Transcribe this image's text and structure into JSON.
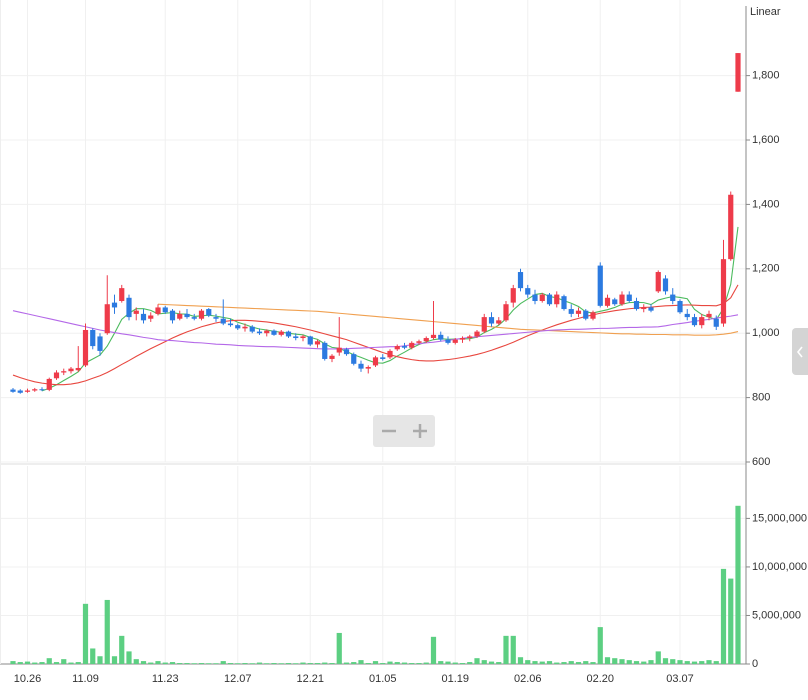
{
  "chart_data": {
    "type": "candlestick",
    "scale_label": "Linear",
    "up_color": "#ee3b4a",
    "down_color": "#2c7ae0",
    "grid": true,
    "categories": [
      null,
      null,
      "10.26",
      null,
      null,
      null,
      null,
      null,
      null,
      null,
      "11.09",
      null,
      null,
      null,
      null,
      null,
      null,
      null,
      null,
      null,
      null,
      "11.23",
      null,
      null,
      null,
      null,
      null,
      null,
      null,
      null,
      null,
      "12.07",
      null,
      null,
      null,
      null,
      null,
      null,
      null,
      null,
      null,
      "12.21",
      null,
      null,
      null,
      null,
      null,
      null,
      null,
      null,
      null,
      "01.05",
      null,
      null,
      null,
      null,
      null,
      null,
      null,
      null,
      null,
      "01.19",
      null,
      null,
      null,
      null,
      null,
      null,
      null,
      null,
      null,
      "02.06",
      null,
      null,
      null,
      null,
      null,
      null,
      null,
      null,
      null,
      "02.20",
      null,
      null,
      null,
      null,
      null,
      null,
      null,
      null,
      null,
      null,
      "03.07",
      null,
      null,
      null,
      null,
      null,
      null,
      null,
      null
    ],
    "candles": [
      [
        825,
        830,
        815,
        818
      ],
      [
        822,
        826,
        812,
        815
      ],
      [
        818,
        828,
        815,
        822
      ],
      [
        822,
        830,
        818,
        826
      ],
      [
        826,
        832,
        820,
        824
      ],
      [
        824,
        862,
        820,
        858
      ],
      [
        860,
        885,
        855,
        878
      ],
      [
        878,
        890,
        870,
        882
      ],
      [
        882,
        895,
        875,
        890
      ],
      [
        885,
        960,
        880,
        892
      ],
      [
        900,
        1030,
        895,
        1010
      ],
      [
        1010,
        1015,
        950,
        960
      ],
      [
        990,
        1000,
        930,
        945
      ],
      [
        1000,
        1180,
        995,
        1090
      ],
      [
        1095,
        1120,
        1060,
        1080
      ],
      [
        1100,
        1150,
        1095,
        1140
      ],
      [
        1110,
        1120,
        1040,
        1050
      ],
      [
        1060,
        1080,
        1040,
        1070
      ],
      [
        1060,
        1075,
        1030,
        1040
      ],
      [
        1045,
        1065,
        1035,
        1055
      ],
      [
        1060,
        1090,
        1055,
        1080
      ],
      [
        1080,
        1085,
        1060,
        1065
      ],
      [
        1070,
        1075,
        1030,
        1040
      ],
      [
        1045,
        1070,
        1040,
        1060
      ],
      [
        1060,
        1075,
        1045,
        1050
      ],
      [
        1050,
        1060,
        1040,
        1045
      ],
      [
        1045,
        1075,
        1040,
        1070
      ],
      [
        1075,
        1078,
        1050,
        1055
      ],
      [
        1050,
        1060,
        1035,
        1045
      ],
      [
        1045,
        1105,
        1025,
        1030
      ],
      [
        1030,
        1045,
        1020,
        1025
      ],
      [
        1025,
        1030,
        1010,
        1015
      ],
      [
        1015,
        1030,
        1005,
        1020
      ],
      [
        1020,
        1025,
        1000,
        1005
      ],
      [
        1005,
        1015,
        995,
        1000
      ],
      [
        1000,
        1012,
        990,
        1008
      ],
      [
        1008,
        1012,
        992,
        995
      ],
      [
        995,
        1010,
        990,
        1005
      ],
      [
        1005,
        1008,
        985,
        990
      ],
      [
        990,
        1000,
        978,
        985
      ],
      [
        985,
        995,
        975,
        990
      ],
      [
        990,
        992,
        960,
        965
      ],
      [
        965,
        980,
        955,
        975
      ],
      [
        970,
        975,
        915,
        920
      ],
      [
        920,
        935,
        910,
        930
      ],
      [
        940,
        1050,
        930,
        955
      ],
      [
        950,
        955,
        930,
        935
      ],
      [
        935,
        940,
        900,
        905
      ],
      [
        905,
        915,
        880,
        890
      ],
      [
        890,
        900,
        875,
        895
      ],
      [
        900,
        930,
        895,
        925
      ],
      [
        925,
        935,
        915,
        920
      ],
      [
        925,
        950,
        920,
        945
      ],
      [
        950,
        965,
        945,
        960
      ],
      [
        960,
        970,
        950,
        955
      ],
      [
        955,
        975,
        950,
        970
      ],
      [
        970,
        980,
        965,
        975
      ],
      [
        975,
        990,
        970,
        985
      ],
      [
        985,
        1100,
        980,
        995
      ],
      [
        995,
        1005,
        975,
        980
      ],
      [
        980,
        990,
        965,
        970
      ],
      [
        970,
        985,
        965,
        980
      ],
      [
        980,
        990,
        970,
        985
      ],
      [
        985,
        995,
        975,
        990
      ],
      [
        990,
        1010,
        985,
        1005
      ],
      [
        1005,
        1060,
        1000,
        1050
      ],
      [
        1050,
        1065,
        1020,
        1030
      ],
      [
        1030,
        1050,
        1025,
        1040
      ],
      [
        1040,
        1100,
        1035,
        1090
      ],
      [
        1095,
        1150,
        1080,
        1140
      ],
      [
        1190,
        1200,
        1130,
        1140
      ],
      [
        1140,
        1150,
        1110,
        1120
      ],
      [
        1120,
        1135,
        1090,
        1100
      ],
      [
        1100,
        1125,
        1095,
        1120
      ],
      [
        1120,
        1125,
        1085,
        1090
      ],
      [
        1090,
        1130,
        1080,
        1120
      ],
      [
        1115,
        1120,
        1070,
        1075
      ],
      [
        1075,
        1090,
        1050,
        1060
      ],
      [
        1060,
        1080,
        1050,
        1070
      ],
      [
        1070,
        1075,
        1040,
        1045
      ],
      [
        1045,
        1070,
        1040,
        1065
      ],
      [
        1210,
        1220,
        1080,
        1085
      ],
      [
        1085,
        1120,
        1080,
        1110
      ],
      [
        1105,
        1110,
        1085,
        1090
      ],
      [
        1090,
        1130,
        1085,
        1120
      ],
      [
        1120,
        1130,
        1095,
        1100
      ],
      [
        1100,
        1110,
        1070,
        1075
      ],
      [
        1075,
        1090,
        1065,
        1080
      ],
      [
        1080,
        1090,
        1065,
        1070
      ],
      [
        1130,
        1195,
        1125,
        1190
      ],
      [
        1170,
        1180,
        1120,
        1130
      ],
      [
        1120,
        1140,
        1090,
        1100
      ],
      [
        1100,
        1105,
        1060,
        1065
      ],
      [
        1060,
        1075,
        1040,
        1050
      ],
      [
        1050,
        1060,
        1020,
        1025
      ],
      [
        1025,
        1060,
        1015,
        1050
      ],
      [
        1050,
        1070,
        1040,
        1060
      ],
      [
        1045,
        1055,
        1010,
        1020
      ],
      [
        1030,
        1290,
        1020,
        1230
      ],
      [
        1230,
        1440,
        1225,
        1430
      ],
      [
        1750,
        1870,
        1750,
        1870
      ]
    ],
    "ylim": [
      600,
      2010
    ],
    "yticks": [
      600,
      800,
      {
        "value": 1000,
        "label": "1,000"
      },
      {
        "value": 1200,
        "label": "1,200"
      },
      {
        "value": 1400,
        "label": "1,400"
      },
      {
        "value": 1600,
        "label": "1,600"
      },
      {
        "value": 1800,
        "label": "1,800"
      }
    ],
    "ma_lines": [
      {
        "color": "#4cbb5e",
        "values": [
          null,
          null,
          null,
          null,
          821,
          829,
          840,
          853,
          866,
          880,
          908,
          920,
          932,
          960,
          1000,
          1043,
          1062,
          1076,
          1076,
          1071,
          1060,
          1062,
          1064,
          1060,
          1059,
          1052,
          1054,
          1056,
          1053,
          1049,
          1045,
          1034,
          1027,
          1019,
          1013,
          1010,
          1006,
          1003,
          1000,
          997,
          995,
          987,
          981,
          967,
          956,
          953,
          943,
          933,
          925,
          916,
          908,
          907,
          915,
          929,
          941,
          954,
          965,
          973,
          980,
          983,
          981,
          982,
          982,
          983,
          988,
          1002,
          1012,
          1025,
          1045,
          1072,
          1092,
          1106,
          1120,
          1124,
          1114,
          1110,
          1101,
          1093,
          1083,
          1066,
          1063,
          1068,
          1073,
          1080,
          1090,
          1095,
          1096,
          1095,
          1089,
          1103,
          1109,
          1114,
          1111,
          1107,
          1074,
          1058,
          1050,
          1042,
          1077,
          1152,
          1330
        ]
      },
      {
        "color": "#e8473f",
        "values": [
          870,
          862,
          855,
          849,
          845,
          842,
          840,
          840,
          842,
          846,
          852,
          860,
          868,
          878,
          890,
          903,
          915,
          928,
          940,
          952,
          963,
          974,
          985,
          995,
          1004,
          1012,
          1020,
          1026,
          1032,
          1036,
          1039,
          1040,
          1040,
          1039,
          1037,
          1035,
          1032,
          1028,
          1024,
          1020,
          1015,
          1010,
          1004,
          998,
          992,
          986,
          980,
          972,
          964,
          956,
          948,
          940,
          933,
          927,
          922,
          918,
          915,
          914,
          914,
          916,
          918,
          921,
          925,
          929,
          934,
          940,
          947,
          955,
          963,
          972,
          982,
          992,
          1001,
          1010,
          1018,
          1026,
          1033,
          1040,
          1046,
          1052,
          1057,
          1062,
          1066,
          1070,
          1073,
          1076,
          1078,
          1080,
          1081,
          1083,
          1085,
          1086,
          1087,
          1088,
          1087,
          1086,
          1086,
          1085,
          1092,
          1110,
          1150
        ]
      },
      {
        "color": "#f0a050",
        "values": [
          null,
          null,
          null,
          null,
          null,
          null,
          null,
          null,
          null,
          null,
          null,
          null,
          null,
          null,
          null,
          null,
          null,
          null,
          null,
          null,
          1090,
          1089,
          1088,
          1087,
          1086,
          1085,
          1084,
          1083,
          1082,
          1081,
          1080,
          1079,
          1078,
          1077,
          1076,
          1075,
          1074,
          1073,
          1072,
          1071,
          1070,
          1069,
          1068,
          1066,
          1064,
          1062,
          1060,
          1058,
          1056,
          1054,
          1052,
          1050,
          1048,
          1046,
          1044,
          1042,
          1040,
          1038,
          1036,
          1034,
          1032,
          1030,
          1028,
          1026,
          1024,
          1022,
          1020,
          1018,
          1016,
          1014,
          1012,
          1011,
          1010,
          1009,
          1008,
          1007,
          1006,
          1005,
          1004,
          1003,
          1002,
          1001,
          1000,
          999,
          998,
          998,
          997,
          997,
          996,
          996,
          996,
          995,
          995,
          995,
          994,
          994,
          994,
          995,
          997,
          1000,
          1005
        ]
      },
      {
        "color": "#b468e8",
        "values": [
          1070,
          1065,
          1060,
          1055,
          1050,
          1045,
          1040,
          1035,
          1030,
          1025,
          1020,
          1015,
          1010,
          1006,
          1002,
          998,
          995,
          991,
          987,
          984,
          980,
          978,
          977,
          975,
          973,
          971,
          970,
          968,
          966,
          965,
          964,
          962,
          961,
          960,
          959,
          958,
          958,
          957,
          956,
          955,
          954,
          953,
          952,
          951,
          951,
          951,
          952,
          953,
          954,
          955,
          956,
          957,
          958,
          958,
          961,
          964,
          967,
          970,
          972,
          975,
          978,
          981,
          984,
          987,
          989,
          991,
          993,
          995,
          997,
          999,
          1001,
          1003,
          1005,
          1007,
          1009,
          1010,
          1011,
          1012,
          1012,
          1013,
          1014,
          1015,
          1015,
          1016,
          1017,
          1018,
          1018,
          1019,
          1019,
          1020,
          1023,
          1027,
          1030,
          1033,
          1037,
          1040,
          1043,
          1047,
          1050,
          1053,
          1057
        ]
      }
    ],
    "volume": {
      "color": "#5ccf82",
      "values": [
        300000,
        200000,
        250000,
        150000,
        200000,
        600000,
        200000,
        500000,
        150000,
        200000,
        6200000,
        1600000,
        800000,
        6600000,
        800000,
        2900000,
        1300000,
        500000,
        300000,
        150000,
        300000,
        150000,
        200000,
        100000,
        100000,
        80000,
        100000,
        80000,
        80000,
        300000,
        100000,
        80000,
        100000,
        80000,
        150000,
        80000,
        100000,
        80000,
        100000,
        80000,
        150000,
        100000,
        100000,
        150000,
        100000,
        3200000,
        150000,
        200000,
        400000,
        100000,
        300000,
        100000,
        250000,
        200000,
        150000,
        100000,
        100000,
        150000,
        2800000,
        300000,
        250000,
        150000,
        100000,
        200000,
        600000,
        400000,
        250000,
        200000,
        2900000,
        2900000,
        700000,
        400000,
        300000,
        250000,
        300000,
        150000,
        200000,
        300000,
        200000,
        300000,
        200000,
        3800000,
        700000,
        600000,
        500000,
        400000,
        300000,
        250000,
        400000,
        1300000,
        600000,
        500000,
        400000,
        300000,
        250000,
        300000,
        400000,
        300000,
        9800000,
        8800000,
        16300000
      ],
      "ylim": [
        0,
        20400000
      ],
      "yticks": [
        0,
        {
          "value": 5000000,
          "label": "5,000,000"
        },
        {
          "value": 10000000,
          "label": "10,000,000"
        },
        {
          "value": 15000000,
          "label": "15,000,000"
        }
      ]
    }
  }
}
